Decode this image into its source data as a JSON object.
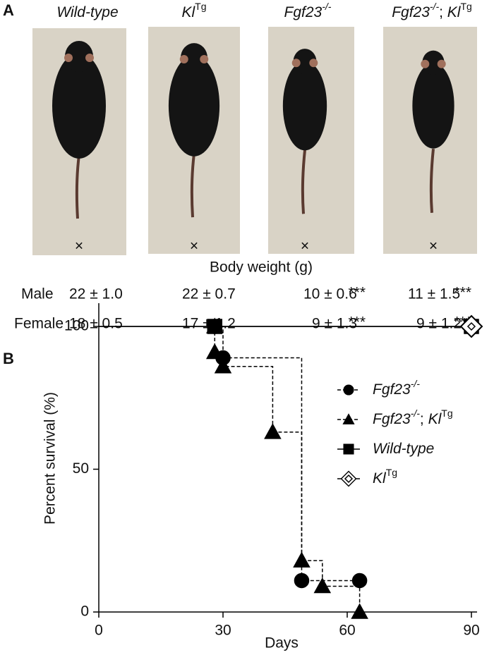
{
  "panel_a": {
    "label": "A",
    "genotypes": [
      [
        {
          "text": "Wild-type",
          "italic": true
        }
      ],
      [
        {
          "text": "Kl",
          "italic": true
        },
        {
          "text": "Tg",
          "sup": true
        }
      ],
      [
        {
          "text": "Fgf23",
          "italic": true
        },
        {
          "text": "-/-",
          "sup": true,
          "italic": true
        }
      ],
      [
        {
          "text": "Fgf23",
          "italic": true
        },
        {
          "text": "-/-",
          "sup": true,
          "italic": true
        },
        {
          "text": "; "
        },
        {
          "text": "Kl",
          "italic": true
        },
        {
          "text": "Tg",
          "sup": true
        }
      ]
    ],
    "weight_title": "Body weight (g)",
    "rows": [
      {
        "label": "Male",
        "cells": [
          "22 ± 1.0",
          "22 ± 0.7",
          "10 ± 0.6",
          "11 ± 1.5"
        ],
        "significance": [
          null,
          null,
          "***",
          "***"
        ]
      },
      {
        "label": "Female",
        "cells": [
          "18 ± 0.5",
          "17 ± 1.2",
          "9 ± 1.3",
          "9 ± 1.2"
        ],
        "significance": [
          null,
          null,
          "***",
          "***"
        ]
      }
    ]
  },
  "panel_b": {
    "label": "B",
    "chart_data": {
      "type": "survival",
      "x_label": "Days",
      "y_label": "Percent survival (%)",
      "xlim": [
        0,
        90
      ],
      "xticks": [
        0,
        30,
        60,
        90
      ],
      "ylim": [
        0,
        100
      ],
      "yticks": [
        0,
        50,
        100
      ],
      "series": [
        {
          "name_parts": [
            {
              "text": "Fgf23",
              "italic": true
            },
            {
              "text": "-/-",
              "sup": true,
              "italic": true
            }
          ],
          "marker": "circle",
          "line": "dashed",
          "color": "#000000",
          "x": [
            28,
            30,
            49,
            63
          ],
          "values": [
            100,
            89,
            11,
            11
          ]
        },
        {
          "name_parts": [
            {
              "text": "Fgf23",
              "italic": true
            },
            {
              "text": "-/-",
              "sup": true,
              "italic": true
            },
            {
              "text": "; "
            },
            {
              "text": "Kl",
              "italic": true
            },
            {
              "text": "Tg",
              "sup": true
            }
          ],
          "marker": "triangle",
          "line": "dashed",
          "color": "#000000",
          "x": [
            28,
            28,
            30,
            42,
            49,
            54,
            63
          ],
          "values": [
            100,
            91,
            86,
            63,
            18,
            9,
            0
          ]
        },
        {
          "name_parts": [
            {
              "text": "Wild-type",
              "italic": true
            }
          ],
          "marker": "square",
          "line": "solid",
          "color": "#000000",
          "x": [
            28,
            90
          ],
          "values": [
            100,
            100
          ]
        },
        {
          "name_parts": [
            {
              "text": "Kl",
              "italic": true
            },
            {
              "text": "Tg",
              "sup": true
            }
          ],
          "marker": "diamond",
          "line": "solid",
          "color": "#000000",
          "x": [
            90
          ],
          "values": [
            100
          ]
        }
      ]
    }
  }
}
